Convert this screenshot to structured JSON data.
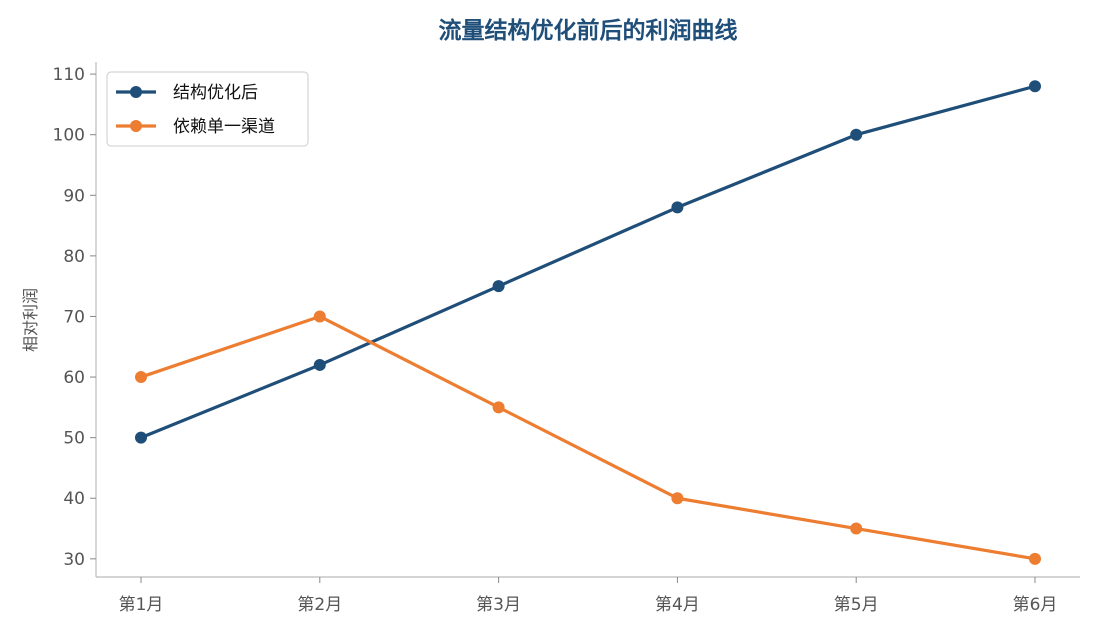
{
  "chart_data": {
    "type": "line",
    "title": "流量结构优化前后的利润曲线",
    "xlabel": "",
    "ylabel": "相对利润",
    "categories": [
      "第1月",
      "第2月",
      "第3月",
      "第4月",
      "第5月",
      "第6月"
    ],
    "yticks": [
      30,
      40,
      50,
      60,
      70,
      80,
      90,
      100,
      110
    ],
    "ylim": [
      27,
      112
    ],
    "grid": false,
    "legend_position": "top-left",
    "series": [
      {
        "name": "结构优化后",
        "color": "#1f4e79",
        "values": [
          50,
          62,
          75,
          88,
          100,
          108
        ]
      },
      {
        "name": "依赖单一渠道",
        "color": "#ed7d31",
        "values": [
          60,
          70,
          55,
          40,
          35,
          30
        ]
      }
    ]
  }
}
